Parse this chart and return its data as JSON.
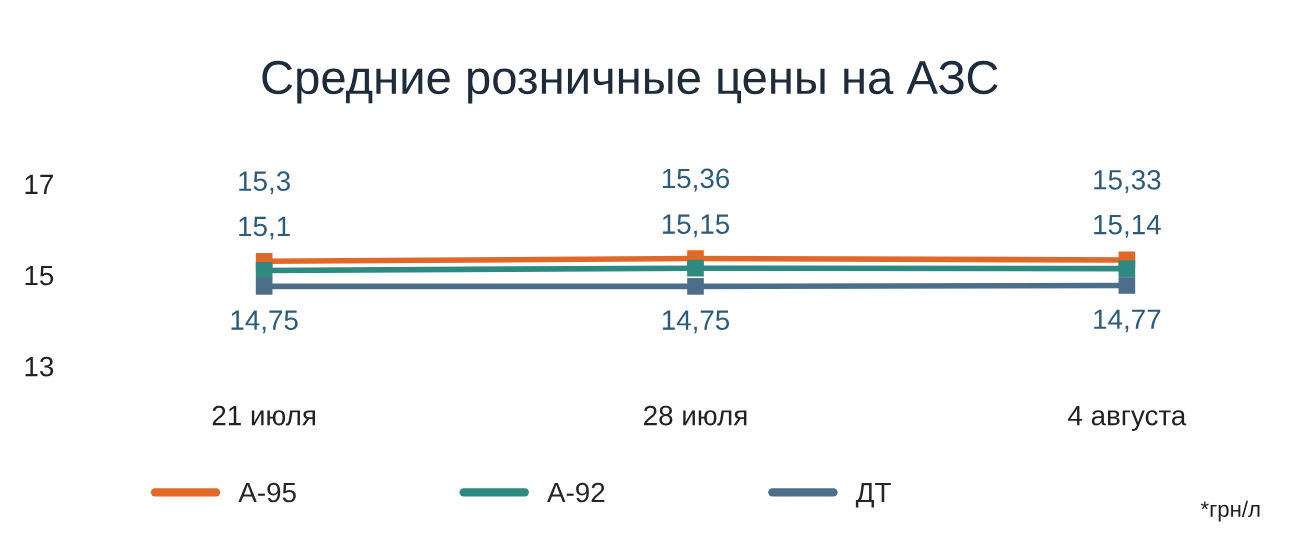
{
  "chart_data": {
    "type": "line",
    "title": "Средние розничные цены на АЗС",
    "categories": [
      "21 июля",
      "28 июля",
      "4 августа"
    ],
    "series": [
      {
        "name": "А-95",
        "color": "#e0692a",
        "values": [
          15.3,
          15.36,
          15.33
        ],
        "value_labels": [
          "15,3",
          "15,36",
          "15,33"
        ]
      },
      {
        "name": "А-92",
        "color": "#2e8a80",
        "values": [
          15.1,
          15.15,
          15.14
        ],
        "value_labels": [
          "15,1",
          "15,15",
          "15,14"
        ]
      },
      {
        "name": "ДТ",
        "color": "#4d6e8a",
        "values": [
          14.75,
          14.75,
          14.77
        ],
        "value_labels": [
          "14,75",
          "14,75",
          "14,77"
        ]
      }
    ],
    "ylim": [
      13,
      17
    ],
    "yticks": [
      13,
      15,
      17
    ],
    "grid": false,
    "legend": "bottom",
    "marker": "square",
    "line_style": "solid",
    "annotations": [
      "*грн/л"
    ]
  }
}
